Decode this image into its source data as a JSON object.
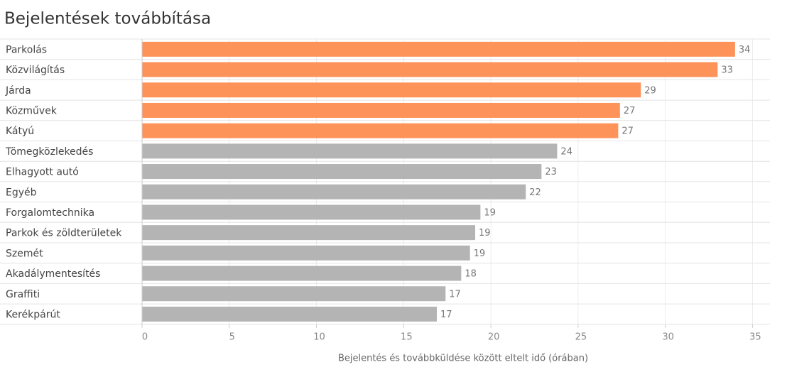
{
  "chart_data": {
    "type": "barh",
    "title": "Bejelentések továbbítása",
    "categories": [
      "Parkolás",
      "Közvilágítás",
      "Járda",
      "Közművek",
      "Kátyú",
      "Tömegközlekedés",
      "Elhagyott autó",
      "Egyéb",
      "Forgalomtechnika",
      "Parkok és zöldterületek",
      "Szemét",
      "Akadálymentesítés",
      "Graffiti",
      "Kerékpárút"
    ],
    "values": [
      34.0,
      33.0,
      28.6,
      27.4,
      27.3,
      23.8,
      22.9,
      22.0,
      19.4,
      19.1,
      18.8,
      18.3,
      17.4,
      16.9
    ],
    "value_labels": [
      "34",
      "33",
      "29",
      "27",
      "27",
      "24",
      "23",
      "22",
      "19",
      "19",
      "19",
      "18",
      "17",
      "17"
    ],
    "colors": [
      "#fe935a",
      "#fe935a",
      "#fe935a",
      "#fe935a",
      "#fe935a",
      "#b4b4b4",
      "#b4b4b4",
      "#b4b4b4",
      "#b4b4b4",
      "#b4b4b4",
      "#b4b4b4",
      "#b4b4b4",
      "#b4b4b4",
      "#b4b4b4"
    ],
    "xlabel": "Bejelentés és továbbküldése között eltelt idő (órában)",
    "xlim": [
      0,
      36
    ],
    "xticks": [
      0,
      5,
      10,
      15,
      20,
      25,
      30,
      35
    ],
    "grid": true
  }
}
